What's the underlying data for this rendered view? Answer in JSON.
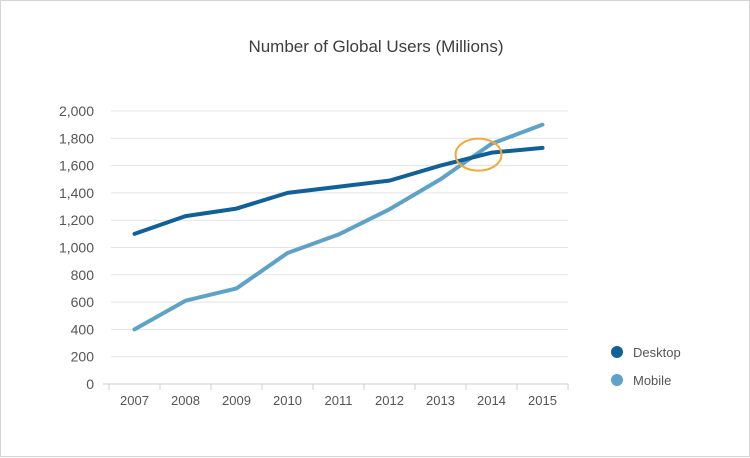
{
  "chart_data": {
    "type": "line",
    "title": "Number of Global Users (Millions)",
    "xlabel": "",
    "ylabel": "",
    "x": [
      "2007",
      "2008",
      "2009",
      "2010",
      "2011",
      "2012",
      "2013",
      "2014",
      "2015"
    ],
    "ylim": [
      0,
      2000
    ],
    "yticks": [
      0,
      200,
      400,
      600,
      800,
      1000,
      1200,
      1400,
      1600,
      1800,
      2000
    ],
    "ytick_labels": [
      "0",
      "200",
      "400",
      "600",
      "800",
      "1,000",
      "1,200",
      "1,400",
      "1,600",
      "1,800",
      "2,000"
    ],
    "grid": true,
    "legend_position": "right",
    "series": [
      {
        "name": "Desktop",
        "color": "#0f6197",
        "values": [
          1100,
          1230,
          1285,
          1400,
          1445,
          1490,
          1600,
          1695,
          1730
        ]
      },
      {
        "name": "Mobile",
        "color": "#5fa2c8",
        "values": [
          400,
          610,
          700,
          960,
          1095,
          1280,
          1500,
          1760,
          1900
        ]
      }
    ],
    "annotation": {
      "type": "circle",
      "label": "",
      "color": "#f2a93b",
      "x": "2014",
      "y": 1680
    }
  }
}
